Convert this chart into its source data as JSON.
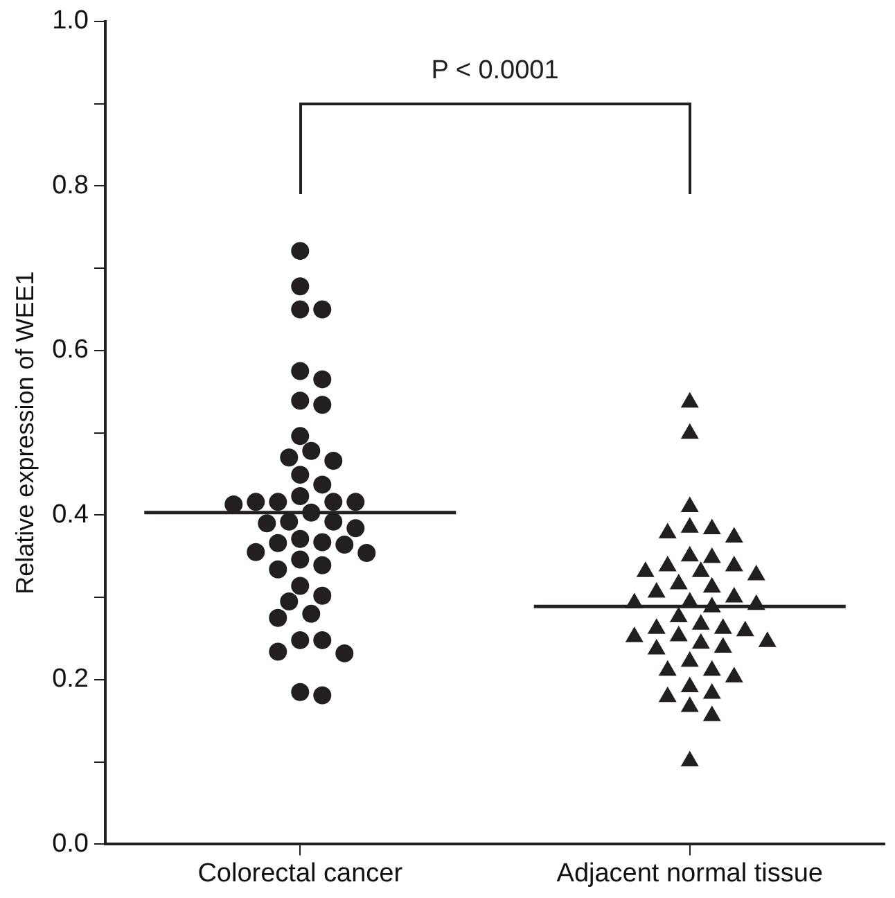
{
  "chart_data": {
    "type": "scatter",
    "ylabel": "Relative expression of WEE1",
    "categories": [
      "Colorectal cancer",
      "Adjacent normal tissue"
    ],
    "ylim": [
      0,
      1
    ],
    "yticks": [
      {
        "value": 0,
        "label": "0.0"
      },
      {
        "value": 0.1,
        "label": null
      },
      0.2,
      {
        "value": 0.3,
        "label": null
      },
      0.4,
      {
        "value": 0.5,
        "label": null
      },
      0.6,
      {
        "value": 0.7,
        "label": null
      },
      0.8,
      {
        "value": 0.9,
        "label": null
      },
      {
        "value": 1,
        "label": "1.0"
      }
    ],
    "grid": false,
    "legend": false,
    "annotations": [
      "P < 0.0001"
    ],
    "ref_lines": [
      {
        "axis": "y",
        "value": 0.403,
        "color": "#231f20"
      },
      {
        "axis": "y",
        "value": 0.289,
        "color": "#231f20"
      }
    ],
    "series": [
      {
        "type": "scatter",
        "marker": "circle",
        "color": "#231f20",
        "x": [
          "Colorectal cancer",
          "Colorectal cancer",
          "Colorectal cancer",
          "Colorectal cancer",
          "Colorectal cancer",
          "Colorectal cancer",
          "Colorectal cancer",
          "Colorectal cancer",
          "Colorectal cancer",
          "Colorectal cancer",
          "Colorectal cancer",
          "Colorectal cancer",
          "Colorectal cancer",
          "Colorectal cancer",
          "Colorectal cancer",
          "Colorectal cancer",
          "Colorectal cancer",
          "Colorectal cancer",
          "Colorectal cancer",
          "Colorectal cancer",
          "Colorectal cancer",
          "Colorectal cancer",
          "Colorectal cancer",
          "Colorectal cancer",
          "Colorectal cancer",
          "Colorectal cancer",
          "Colorectal cancer",
          "Colorectal cancer",
          "Colorectal cancer",
          "Colorectal cancer",
          "Colorectal cancer",
          "Colorectal cancer",
          "Colorectal cancer",
          "Colorectal cancer",
          "Colorectal cancer",
          "Colorectal cancer",
          "Colorectal cancer",
          "Colorectal cancer",
          "Colorectal cancer",
          "Colorectal cancer",
          "Colorectal cancer",
          "Colorectal cancer",
          "Colorectal cancer",
          "Colorectal cancer",
          "Colorectal cancer"
        ],
        "values": [
          0.721,
          0.678,
          0.65,
          0.65,
          0.575,
          0.565,
          0.534,
          0.539,
          0.496,
          0.478,
          0.466,
          0.47,
          0.449,
          0.437,
          0.423,
          0.416,
          0.413,
          0.416,
          0.416,
          0.403,
          0.39,
          0.392,
          0.384,
          0.371,
          0.366,
          0.364,
          0.367,
          0.355,
          0.354,
          0.346,
          0.339,
          0.334,
          0.314,
          0.302,
          0.295,
          0.28,
          0.275,
          0.248,
          0.248,
          0.234,
          0.232,
          0.185,
          0.181,
          0.416,
          0.392
        ]
      },
      {
        "type": "scatter",
        "marker": "triangle",
        "color": "#231f20",
        "x": [
          "Adjacent normal tissue",
          "Adjacent normal tissue",
          "Adjacent normal tissue",
          "Adjacent normal tissue",
          "Adjacent normal tissue",
          "Adjacent normal tissue",
          "Adjacent normal tissue",
          "Adjacent normal tissue",
          "Adjacent normal tissue",
          "Adjacent normal tissue",
          "Adjacent normal tissue",
          "Adjacent normal tissue",
          "Adjacent normal tissue",
          "Adjacent normal tissue",
          "Adjacent normal tissue",
          "Adjacent normal tissue",
          "Adjacent normal tissue",
          "Adjacent normal tissue",
          "Adjacent normal tissue",
          "Adjacent normal tissue",
          "Adjacent normal tissue",
          "Adjacent normal tissue",
          "Adjacent normal tissue",
          "Adjacent normal tissue",
          "Adjacent normal tissue",
          "Adjacent normal tissue",
          "Adjacent normal tissue",
          "Adjacent normal tissue",
          "Adjacent normal tissue",
          "Adjacent normal tissue",
          "Adjacent normal tissue",
          "Adjacent normal tissue",
          "Adjacent normal tissue",
          "Adjacent normal tissue",
          "Adjacent normal tissue",
          "Adjacent normal tissue",
          "Adjacent normal tissue",
          "Adjacent normal tissue",
          "Adjacent normal tissue",
          "Adjacent normal tissue",
          "Adjacent normal tissue",
          "Adjacent normal tissue",
          "Adjacent normal tissue"
        ],
        "values": [
          0.537,
          0.499,
          0.41,
          0.383,
          0.373,
          0.378,
          0.385,
          0.348,
          0.338,
          0.35,
          0.331,
          0.327,
          0.331,
          0.338,
          0.312,
          0.316,
          0.306,
          0.3,
          0.294,
          0.291,
          0.288,
          0.293,
          0.276,
          0.267,
          0.262,
          0.253,
          0.259,
          0.262,
          0.252,
          0.244,
          0.246,
          0.239,
          0.237,
          0.222,
          0.211,
          0.203,
          0.211,
          0.191,
          0.179,
          0.183,
          0.167,
          0.156,
          0.101
        ]
      }
    ]
  }
}
